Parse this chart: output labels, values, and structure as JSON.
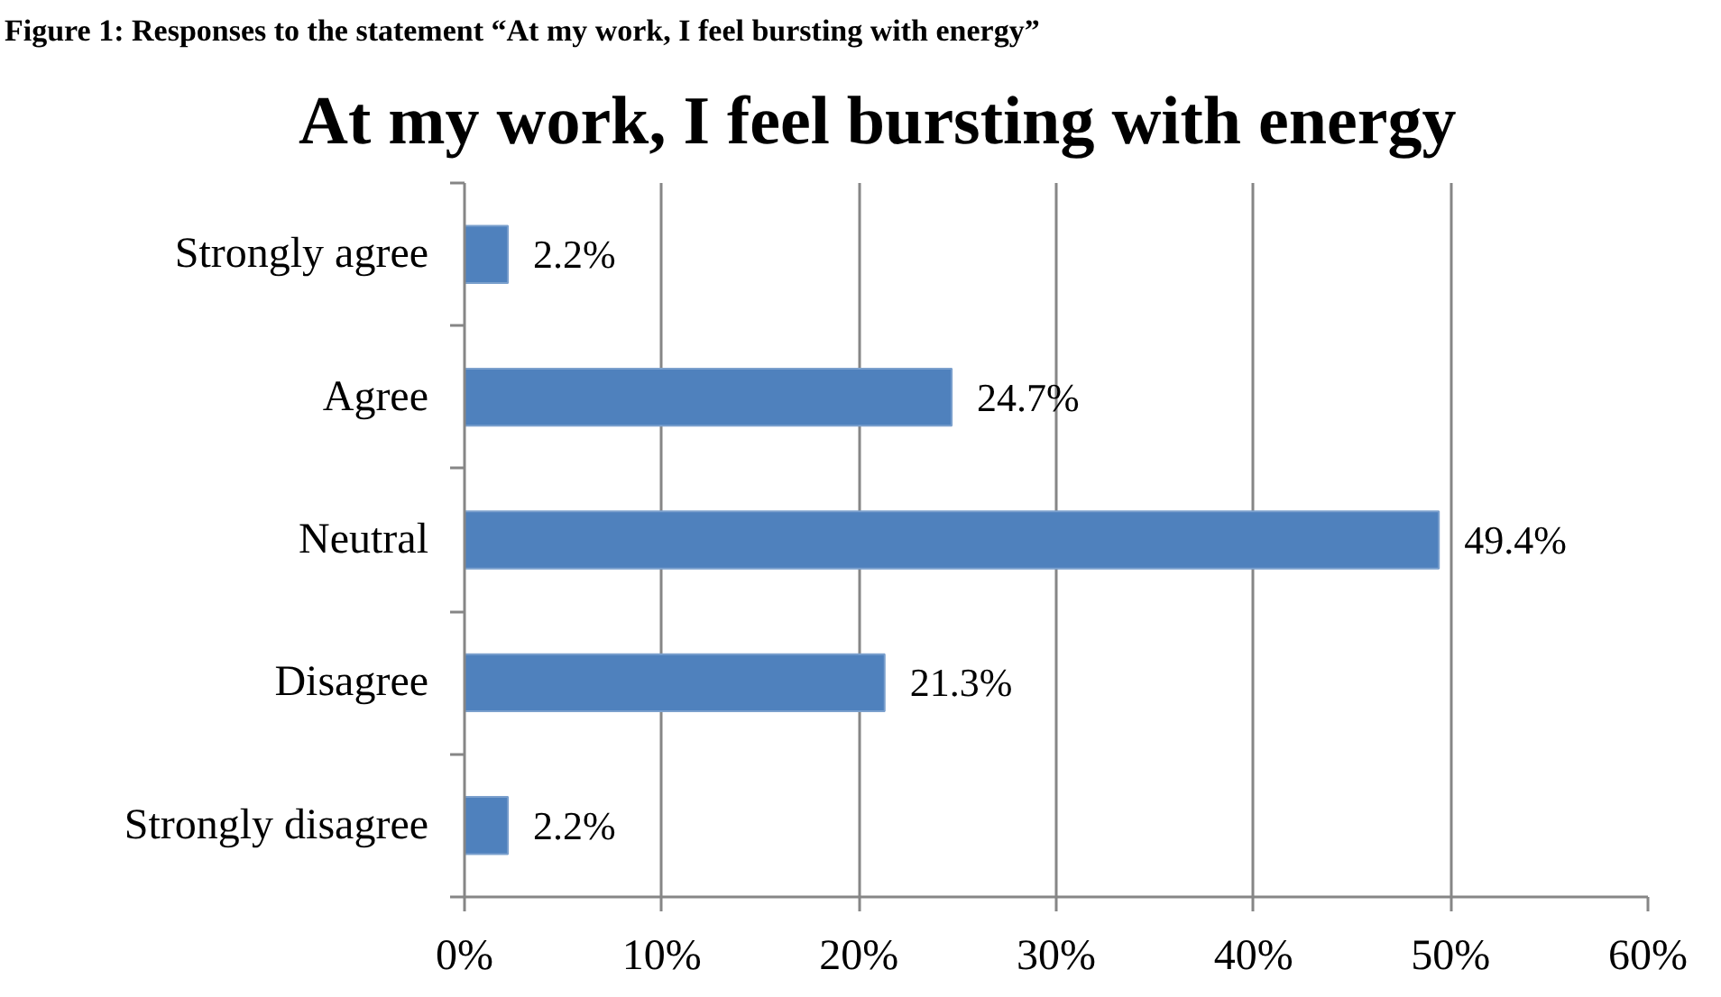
{
  "chart_data": {
    "type": "bar",
    "orientation": "horizontal",
    "title": "At my work, I feel bursting with energy",
    "annotations": [
      "Figure 1: Responses to the statement “At my work, I feel bursting with energy”"
    ],
    "categories": [
      "Strongly agree",
      "Agree",
      "Neutral",
      "Disagree",
      "Strongly disagree"
    ],
    "values": [
      2.2,
      24.7,
      49.4,
      21.3,
      2.2
    ],
    "value_labels": [
      "2.2%",
      "24.7%",
      "49.4%",
      "21.3%",
      "2.2%"
    ],
    "color": "#4f81bd",
    "xlim": [
      0,
      60
    ],
    "xticks": [
      {
        "value": 0,
        "label": "0%"
      },
      {
        "value": 10,
        "label": "10%"
      },
      {
        "value": 20,
        "label": "20%"
      },
      {
        "value": 30,
        "label": "30%"
      },
      {
        "value": 40,
        "label": "40%"
      },
      {
        "value": 50,
        "label": "50%"
      },
      {
        "value": 60,
        "label": "60%"
      }
    ],
    "grid": "x"
  }
}
